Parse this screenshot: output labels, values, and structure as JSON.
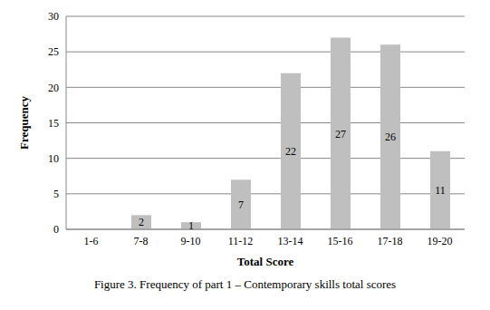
{
  "chart_data": {
    "type": "bar",
    "title": "Figure 3. Frequency of part 1 – Contemporary skills total scores",
    "x_label": "Total Score",
    "y_label": "Frequency",
    "categories": [
      "1-6",
      "7-8",
      "9-10",
      "11-12",
      "13-14",
      "15-16",
      "17-18",
      "19-20"
    ],
    "values": [
      0,
      2,
      1,
      7,
      22,
      27,
      26,
      11
    ],
    "color": "#bfbfbf",
    "ylim": [
      0,
      30
    ],
    "yticks": [
      0,
      5,
      10,
      15,
      20,
      25,
      30
    ],
    "grid": true,
    "data_labels": true
  }
}
